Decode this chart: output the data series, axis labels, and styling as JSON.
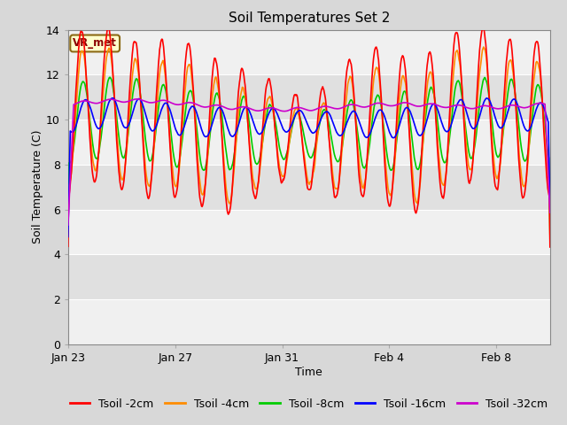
{
  "title": "Soil Temperatures Set 2",
  "xlabel": "Time",
  "ylabel": "Soil Temperature (C)",
  "ylim": [
    0,
    14
  ],
  "yticks": [
    0,
    2,
    4,
    6,
    8,
    10,
    12,
    14
  ],
  "line_colors": {
    "2cm": "#ff0000",
    "4cm": "#ff8c00",
    "8cm": "#00cc00",
    "16cm": "#0000ff",
    "32cm": "#cc00cc"
  },
  "legend_labels": [
    "Tsoil -2cm",
    "Tsoil -4cm",
    "Tsoil -8cm",
    "Tsoil -16cm",
    "Tsoil -32cm"
  ],
  "annotation_text": "VR_met",
  "annotation_box_color": "#ffffcc",
  "annotation_box_edge": "#8b6914",
  "band_colors": [
    "#f0f0f0",
    "#e0e0e0"
  ],
  "background_plot": "#d8d8d8",
  "title_fontsize": 11,
  "axis_label_fontsize": 9,
  "tick_fontsize": 9,
  "legend_fontsize": 9
}
